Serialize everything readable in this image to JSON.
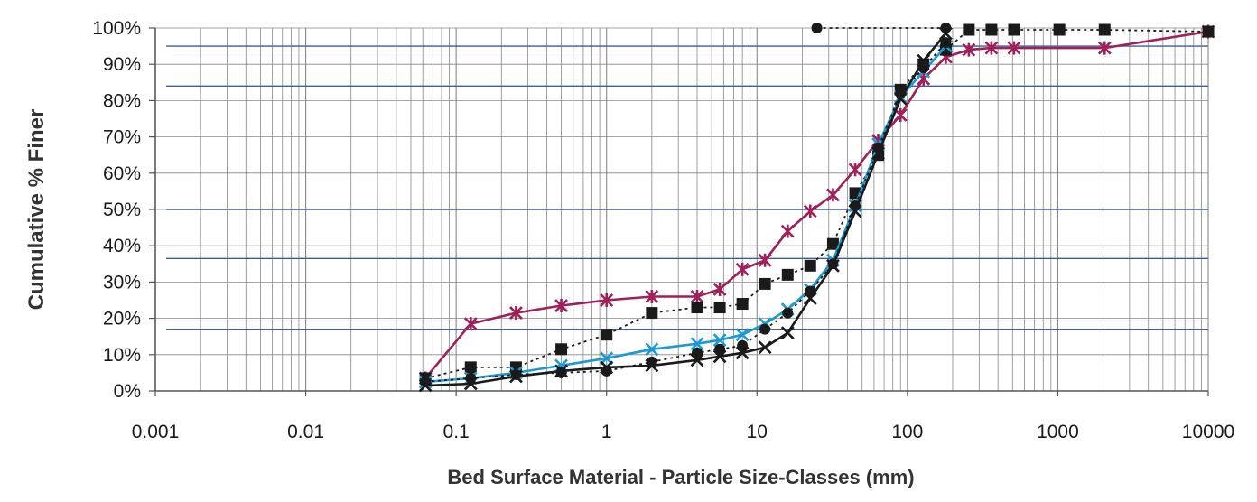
{
  "chart_data": {
    "type": "line",
    "title": "",
    "xlabel": "Bed Surface Material - Particle Size-Classes (mm)",
    "ylabel": "Cumulative % Finer",
    "x_scale": "log",
    "xlim": [
      0.001,
      10000
    ],
    "ylim": [
      0,
      100
    ],
    "x_ticks": [
      0.001,
      0.01,
      0.1,
      1,
      10,
      100,
      1000,
      10000
    ],
    "x_tick_labels": [
      "0.001",
      "0.01",
      "0.1",
      "1",
      "10",
      "100",
      "1000",
      "10000"
    ],
    "y_ticks": [
      0,
      10,
      20,
      30,
      40,
      50,
      60,
      70,
      80,
      90,
      100
    ],
    "y_tick_labels": [
      "0%",
      "10%",
      "20%",
      "30%",
      "40%",
      "50%",
      "60%",
      "70%",
      "80%",
      "90%",
      "100%"
    ],
    "grid": "log-minor vertical, horizontal at 10% steps",
    "reference_lines_y": [
      17,
      36.5,
      50,
      84,
      95
    ],
    "legend": "none",
    "colors": {
      "axis": "#555555",
      "grid": "#888888",
      "reference_line": "#3a5f9a"
    },
    "series": [
      {
        "color": "#a0205a",
        "line": "solid",
        "marker": "asterisk",
        "x": [
          0.0625,
          0.125,
          0.25,
          0.5,
          1,
          2,
          4,
          5.66,
          8,
          11.3,
          16,
          22.6,
          32,
          45,
          64,
          90,
          128,
          180,
          256,
          362,
          512,
          2048,
          10000
        ],
        "y": [
          3.5,
          18.5,
          21.5,
          23.5,
          25,
          26,
          26,
          28,
          33.5,
          36,
          44,
          49.5,
          54,
          61,
          69,
          76,
          86,
          92,
          94,
          94.5,
          94.5,
          94.5,
          99
        ]
      },
      {
        "color": "#1a1a1a",
        "line": "dotted",
        "marker": "square",
        "x": [
          0.0625,
          0.125,
          0.25,
          0.5,
          1,
          2,
          4,
          5.66,
          8,
          11.3,
          16,
          22.6,
          32,
          45,
          64,
          90,
          128,
          180,
          256,
          362,
          512,
          1024,
          2048,
          10000
        ],
        "y": [
          3.5,
          6.5,
          6.5,
          11.5,
          15.5,
          21.5,
          23,
          23,
          24,
          29.5,
          32,
          34.5,
          40.5,
          54.5,
          65,
          83,
          90,
          94,
          99.5,
          99.5,
          99.5,
          99.5,
          99.5,
          99
        ]
      },
      {
        "color": "#1a9ad6",
        "line": "solid",
        "marker": "x",
        "x": [
          0.0625,
          0.125,
          0.25,
          0.5,
          1,
          2,
          4,
          5.66,
          8,
          11.3,
          16,
          22.6,
          32,
          45,
          64,
          90,
          128,
          180
        ],
        "y": [
          2.5,
          3.5,
          5,
          7,
          9,
          11.5,
          13,
          14,
          15.5,
          18.5,
          22.5,
          28,
          36,
          51,
          68,
          81,
          88,
          95
        ]
      },
      {
        "color": "#1a1a1a",
        "line": "dotted",
        "marker": "circle",
        "x": [
          0.0625,
          0.125,
          0.25,
          0.5,
          1,
          2,
          4,
          5.66,
          8,
          11.3,
          16,
          22.6,
          32,
          45,
          64,
          90,
          128,
          180
        ],
        "y": [
          2.5,
          3.5,
          4.5,
          5,
          5.5,
          8,
          10.5,
          11.5,
          12.5,
          17,
          21.5,
          27.5,
          35,
          51,
          67,
          82,
          89,
          96
        ]
      },
      {
        "color": "#1a1a1a",
        "line": "dotted",
        "marker": "circle",
        "x": [
          25,
          180
        ],
        "y": [
          100,
          100
        ]
      },
      {
        "color": "#1a1a1a",
        "line": "solid",
        "marker": "x",
        "x": [
          0.0625,
          0.125,
          0.25,
          0.5,
          1,
          2,
          4,
          5.66,
          8,
          11.3,
          16,
          22.6,
          32,
          45,
          64,
          90,
          128,
          180
        ],
        "y": [
          1.5,
          2,
          4,
          5.5,
          6.5,
          7,
          8.5,
          9.5,
          10.5,
          12,
          16,
          25.5,
          34.5,
          49.5,
          65.5,
          80.5,
          91,
          98.5
        ]
      }
    ]
  }
}
